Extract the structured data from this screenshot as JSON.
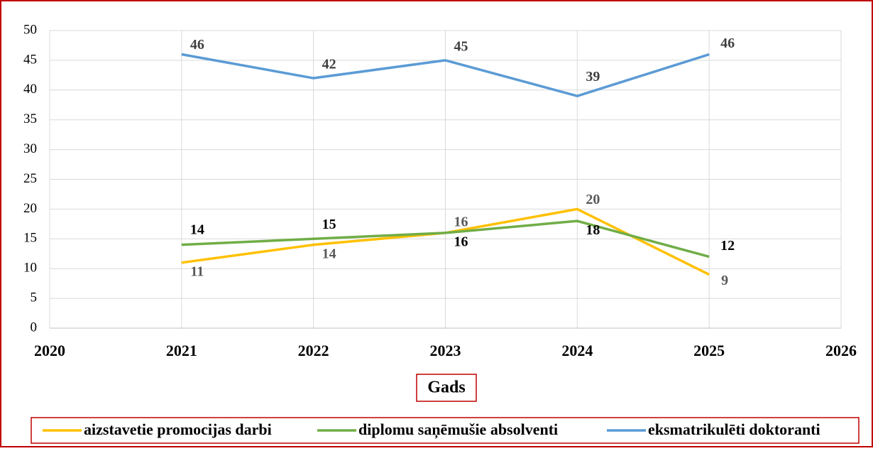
{
  "chart_data": {
    "type": "line",
    "x": [
      2021,
      2022,
      2023,
      2024,
      2025
    ],
    "series": [
      {
        "name": "aizstavetie promocijas darbi",
        "color": "#ffc000",
        "values": [
          11,
          14,
          16,
          20,
          9
        ]
      },
      {
        "name": "diplomu saņēmušie absolventi",
        "color": "#70ad47",
        "values": [
          14,
          15,
          16,
          18,
          12
        ]
      },
      {
        "name": "eksmatrikulēti doktoranti",
        "color": "#5b9bd5",
        "values": [
          46,
          42,
          45,
          39,
          46
        ]
      }
    ],
    "xlabel": "Gads",
    "xlim": [
      2020,
      2026
    ],
    "xticks": [
      2020,
      2021,
      2022,
      2023,
      2024,
      2025,
      2026
    ],
    "ylim": [
      0,
      50
    ],
    "yticks": [
      0,
      5,
      10,
      15,
      20,
      25,
      30,
      35,
      40,
      45,
      50
    ],
    "grid": true,
    "legend": "bottom"
  }
}
